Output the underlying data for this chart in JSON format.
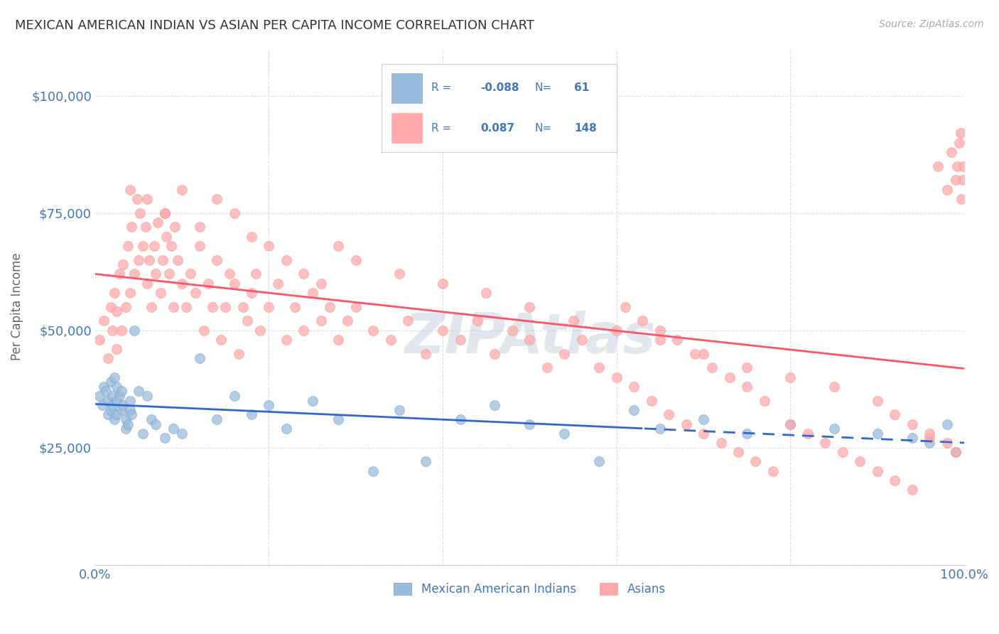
{
  "title": "MEXICAN AMERICAN INDIAN VS ASIAN PER CAPITA INCOME CORRELATION CHART",
  "source": "Source: ZipAtlas.com",
  "ylabel": "Per Capita Income",
  "xlim": [
    0,
    1
  ],
  "ylim": [
    0,
    110000
  ],
  "yticks": [
    0,
    25000,
    50000,
    75000,
    100000
  ],
  "ytick_labels": [
    "",
    "$25,000",
    "$50,000",
    "$75,000",
    "$100,000"
  ],
  "xtick_labels": [
    "0.0%",
    "100.0%"
  ],
  "watermark": "ZIPAtlas",
  "legend_r_blue": "-0.088",
  "legend_n_blue": "61",
  "legend_r_pink": "0.087",
  "legend_n_pink": "148",
  "blue_color": "#99BBDD",
  "pink_color": "#FFAAAA",
  "trend_blue_color": "#3366CC",
  "trend_pink_color": "#FF5566",
  "axis_label_color": "#4477BB",
  "background_color": "#FFFFFF",
  "grid_color": "#DDDDEE",
  "blue_points_x": [
    0.005,
    0.008,
    0.01,
    0.012,
    0.015,
    0.015,
    0.018,
    0.018,
    0.02,
    0.02,
    0.022,
    0.022,
    0.025,
    0.025,
    0.025,
    0.028,
    0.03,
    0.03,
    0.032,
    0.035,
    0.035,
    0.038,
    0.04,
    0.04,
    0.042,
    0.045,
    0.05,
    0.055,
    0.06,
    0.065,
    0.07,
    0.08,
    0.09,
    0.1,
    0.12,
    0.14,
    0.16,
    0.18,
    0.2,
    0.22,
    0.25,
    0.28,
    0.32,
    0.35,
    0.38,
    0.42,
    0.46,
    0.5,
    0.54,
    0.58,
    0.62,
    0.65,
    0.7,
    0.75,
    0.8,
    0.85,
    0.9,
    0.94,
    0.96,
    0.98,
    0.99
  ],
  "blue_points_y": [
    36000,
    34000,
    38000,
    37000,
    32000,
    35000,
    39000,
    33000,
    34000,
    36000,
    31000,
    40000,
    32000,
    35000,
    38000,
    36000,
    37000,
    33000,
    34000,
    31000,
    29000,
    30000,
    33000,
    35000,
    32000,
    50000,
    37000,
    28000,
    36000,
    31000,
    30000,
    27000,
    29000,
    28000,
    44000,
    31000,
    36000,
    32000,
    34000,
    29000,
    35000,
    31000,
    20000,
    33000,
    22000,
    31000,
    34000,
    30000,
    28000,
    22000,
    33000,
    29000,
    31000,
    28000,
    30000,
    29000,
    28000,
    27000,
    26000,
    30000,
    24000
  ],
  "pink_points_x": [
    0.005,
    0.01,
    0.015,
    0.018,
    0.02,
    0.022,
    0.025,
    0.025,
    0.028,
    0.03,
    0.032,
    0.035,
    0.038,
    0.04,
    0.042,
    0.045,
    0.048,
    0.05,
    0.052,
    0.055,
    0.058,
    0.06,
    0.062,
    0.065,
    0.068,
    0.07,
    0.072,
    0.075,
    0.078,
    0.08,
    0.082,
    0.085,
    0.088,
    0.09,
    0.092,
    0.095,
    0.1,
    0.105,
    0.11,
    0.115,
    0.12,
    0.125,
    0.13,
    0.135,
    0.14,
    0.145,
    0.15,
    0.155,
    0.16,
    0.165,
    0.17,
    0.175,
    0.18,
    0.185,
    0.19,
    0.2,
    0.21,
    0.22,
    0.23,
    0.24,
    0.25,
    0.26,
    0.27,
    0.28,
    0.29,
    0.3,
    0.32,
    0.34,
    0.36,
    0.38,
    0.4,
    0.42,
    0.44,
    0.46,
    0.48,
    0.5,
    0.52,
    0.54,
    0.56,
    0.58,
    0.6,
    0.62,
    0.64,
    0.66,
    0.68,
    0.7,
    0.72,
    0.74,
    0.76,
    0.78,
    0.8,
    0.82,
    0.84,
    0.86,
    0.88,
    0.9,
    0.92,
    0.94,
    0.96,
    0.97,
    0.98,
    0.985,
    0.99,
    0.992,
    0.994,
    0.996,
    0.997,
    0.998,
    0.999,
    0.04,
    0.06,
    0.08,
    0.1,
    0.12,
    0.14,
    0.16,
    0.18,
    0.2,
    0.22,
    0.24,
    0.26,
    0.28,
    0.3,
    0.35,
    0.4,
    0.45,
    0.5,
    0.55,
    0.6,
    0.65,
    0.7,
    0.75,
    0.8,
    0.85,
    0.9,
    0.92,
    0.94,
    0.96,
    0.98,
    0.99,
    0.61,
    0.63,
    0.65,
    0.67,
    0.69,
    0.71,
    0.73,
    0.75,
    0.77
  ],
  "pink_points_y": [
    48000,
    52000,
    44000,
    55000,
    50000,
    58000,
    46000,
    54000,
    62000,
    50000,
    64000,
    55000,
    68000,
    58000,
    72000,
    62000,
    78000,
    65000,
    75000,
    68000,
    72000,
    60000,
    65000,
    55000,
    68000,
    62000,
    73000,
    58000,
    65000,
    75000,
    70000,
    62000,
    68000,
    55000,
    72000,
    65000,
    60000,
    55000,
    62000,
    58000,
    68000,
    50000,
    60000,
    55000,
    65000,
    48000,
    55000,
    62000,
    60000,
    45000,
    55000,
    52000,
    58000,
    62000,
    50000,
    55000,
    60000,
    48000,
    55000,
    50000,
    58000,
    52000,
    55000,
    48000,
    52000,
    55000,
    50000,
    48000,
    52000,
    45000,
    50000,
    48000,
    52000,
    45000,
    50000,
    48000,
    42000,
    45000,
    48000,
    42000,
    40000,
    38000,
    35000,
    32000,
    30000,
    28000,
    26000,
    24000,
    22000,
    20000,
    30000,
    28000,
    26000,
    24000,
    22000,
    20000,
    18000,
    16000,
    27000,
    85000,
    80000,
    88000,
    82000,
    85000,
    90000,
    92000,
    78000,
    82000,
    85000,
    80000,
    78000,
    75000,
    80000,
    72000,
    78000,
    75000,
    70000,
    68000,
    65000,
    62000,
    60000,
    68000,
    65000,
    62000,
    60000,
    58000,
    55000,
    52000,
    50000,
    48000,
    45000,
    42000,
    40000,
    38000,
    35000,
    32000,
    30000,
    28000,
    26000,
    24000,
    55000,
    52000,
    50000,
    48000,
    45000,
    42000,
    40000,
    38000,
    35000
  ]
}
